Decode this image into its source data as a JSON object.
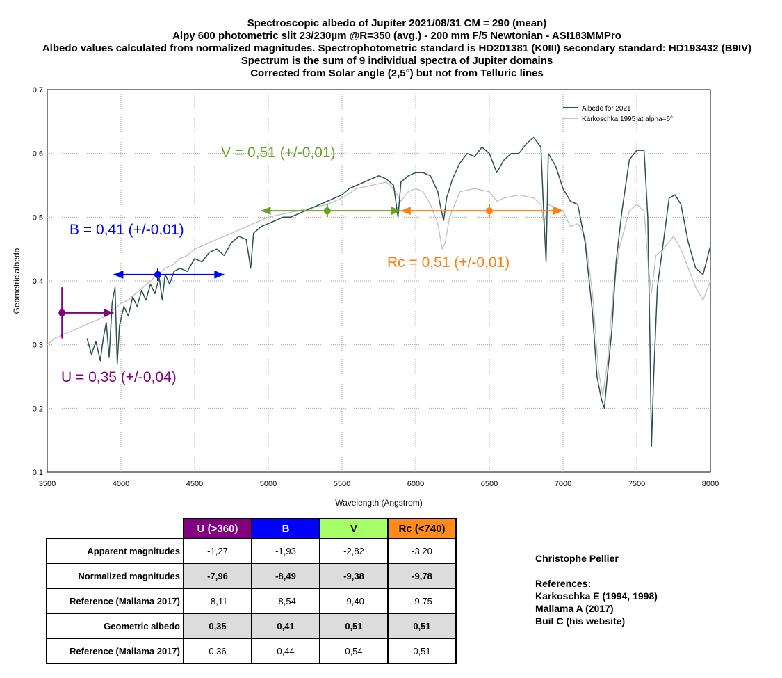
{
  "title_lines": [
    "Spectroscopic albedo of Jupiter 2021/08/31 CM = 290 (mean)",
    "Alpy 600 photometric slit 23/230µm @R=350 (avg.) - 200 mm F/5 Newtonian - ASI183MMPro",
    "Albedo values calculated from normalized magnitudes. Spectrophotometric standard is HD201381 (K0III) secondary standard: HD193432 (B9IV)",
    "Spectrum is the sum of 9 individual spectra of Jupiter domains",
    "Corrected from Solar angle (2,5°) but not from Telluric lines"
  ],
  "chart_data": {
    "type": "line",
    "xlabel": "Wavelength (Angstrom)",
    "ylabel": "Geometric albedo",
    "xlim": [
      3500,
      8000
    ],
    "ylim": [
      0.1,
      0.7
    ],
    "x_ticks": [
      3500,
      4000,
      4500,
      5000,
      5500,
      6000,
      6500,
      7000,
      7500,
      8000
    ],
    "y_ticks": [
      0.1,
      0.2,
      0.3,
      0.4,
      0.5,
      0.6,
      0.7
    ],
    "y_tick_labels": [
      "0.1",
      "0.2",
      "0.3",
      "0.4",
      "0.5",
      "0.6",
      "0.7"
    ],
    "grid": true,
    "legend_position": "top-right",
    "series": [
      {
        "name": "Albedo for 2021",
        "color": "#2f4f4f",
        "points": [
          [
            3770,
            0.31
          ],
          [
            3800,
            0.285
          ],
          [
            3830,
            0.305
          ],
          [
            3860,
            0.275
          ],
          [
            3880,
            0.31
          ],
          [
            3900,
            0.335
          ],
          [
            3920,
            0.28
          ],
          [
            3940,
            0.365
          ],
          [
            3960,
            0.39
          ],
          [
            3975,
            0.27
          ],
          [
            3990,
            0.33
          ],
          [
            4020,
            0.36
          ],
          [
            4050,
            0.345
          ],
          [
            4080,
            0.375
          ],
          [
            4110,
            0.36
          ],
          [
            4140,
            0.385
          ],
          [
            4170,
            0.37
          ],
          [
            4200,
            0.395
          ],
          [
            4230,
            0.38
          ],
          [
            4260,
            0.405
          ],
          [
            4280,
            0.37
          ],
          [
            4300,
            0.41
          ],
          [
            4330,
            0.395
          ],
          [
            4360,
            0.415
          ],
          [
            4400,
            0.42
          ],
          [
            4450,
            0.415
          ],
          [
            4500,
            0.435
          ],
          [
            4550,
            0.43
          ],
          [
            4600,
            0.445
          ],
          [
            4650,
            0.45
          ],
          [
            4700,
            0.44
          ],
          [
            4750,
            0.46
          ],
          [
            4800,
            0.47
          ],
          [
            4850,
            0.465
          ],
          [
            4880,
            0.42
          ],
          [
            4900,
            0.475
          ],
          [
            4950,
            0.485
          ],
          [
            5000,
            0.49
          ],
          [
            5050,
            0.495
          ],
          [
            5100,
            0.5
          ],
          [
            5150,
            0.5
          ],
          [
            5200,
            0.505
          ],
          [
            5250,
            0.51
          ],
          [
            5300,
            0.515
          ],
          [
            5350,
            0.52
          ],
          [
            5400,
            0.525
          ],
          [
            5450,
            0.53
          ],
          [
            5500,
            0.535
          ],
          [
            5550,
            0.545
          ],
          [
            5600,
            0.55
          ],
          [
            5650,
            0.555
          ],
          [
            5700,
            0.56
          ],
          [
            5750,
            0.565
          ],
          [
            5800,
            0.56
          ],
          [
            5850,
            0.55
          ],
          [
            5880,
            0.5
          ],
          [
            5900,
            0.555
          ],
          [
            5950,
            0.565
          ],
          [
            6000,
            0.57
          ],
          [
            6050,
            0.57
          ],
          [
            6100,
            0.565
          ],
          [
            6150,
            0.54
          ],
          [
            6170,
            0.515
          ],
          [
            6190,
            0.495
          ],
          [
            6210,
            0.53
          ],
          [
            6250,
            0.56
          ],
          [
            6300,
            0.585
          ],
          [
            6350,
            0.6
          ],
          [
            6400,
            0.595
          ],
          [
            6450,
            0.61
          ],
          [
            6500,
            0.6
          ],
          [
            6550,
            0.57
          ],
          [
            6600,
            0.59
          ],
          [
            6650,
            0.6
          ],
          [
            6700,
            0.6
          ],
          [
            6750,
            0.615
          ],
          [
            6800,
            0.625
          ],
          [
            6850,
            0.61
          ],
          [
            6870,
            0.5
          ],
          [
            6885,
            0.43
          ],
          [
            6900,
            0.6
          ],
          [
            6950,
            0.58
          ],
          [
            7000,
            0.545
          ],
          [
            7050,
            0.525
          ],
          [
            7100,
            0.52
          ],
          [
            7150,
            0.46
          ],
          [
            7200,
            0.35
          ],
          [
            7230,
            0.25
          ],
          [
            7260,
            0.215
          ],
          [
            7280,
            0.2
          ],
          [
            7300,
            0.25
          ],
          [
            7330,
            0.32
          ],
          [
            7360,
            0.43
          ],
          [
            7400,
            0.51
          ],
          [
            7450,
            0.59
          ],
          [
            7500,
            0.605
          ],
          [
            7550,
            0.605
          ],
          [
            7575,
            0.5
          ],
          [
            7590,
            0.3
          ],
          [
            7600,
            0.14
          ],
          [
            7615,
            0.25
          ],
          [
            7640,
            0.39
          ],
          [
            7680,
            0.46
          ],
          [
            7720,
            0.53
          ],
          [
            7760,
            0.535
          ],
          [
            7800,
            0.52
          ],
          [
            7850,
            0.46
          ],
          [
            7900,
            0.42
          ],
          [
            7950,
            0.41
          ],
          [
            8000,
            0.455
          ]
        ]
      },
      {
        "name": "Karkoschka 1995 at alpha=6°",
        "color": "#c0c0c0",
        "points": [
          [
            3500,
            0.3
          ],
          [
            3550,
            0.31
          ],
          [
            3600,
            0.315
          ],
          [
            3650,
            0.32
          ],
          [
            3700,
            0.325
          ],
          [
            3750,
            0.33
          ],
          [
            3800,
            0.335
          ],
          [
            3850,
            0.34
          ],
          [
            3900,
            0.345
          ],
          [
            3950,
            0.355
          ],
          [
            4000,
            0.365
          ],
          [
            4050,
            0.37
          ],
          [
            4100,
            0.38
          ],
          [
            4150,
            0.39
          ],
          [
            4200,
            0.4
          ],
          [
            4250,
            0.41
          ],
          [
            4300,
            0.42
          ],
          [
            4350,
            0.425
          ],
          [
            4400,
            0.435
          ],
          [
            4450,
            0.44
          ],
          [
            4500,
            0.45
          ],
          [
            4550,
            0.455
          ],
          [
            4600,
            0.46
          ],
          [
            4650,
            0.465
          ],
          [
            4700,
            0.47
          ],
          [
            4750,
            0.475
          ],
          [
            4800,
            0.48
          ],
          [
            4850,
            0.485
          ],
          [
            4900,
            0.49
          ],
          [
            4950,
            0.495
          ],
          [
            5000,
            0.5
          ],
          [
            5100,
            0.505
          ],
          [
            5200,
            0.51
          ],
          [
            5300,
            0.515
          ],
          [
            5400,
            0.52
          ],
          [
            5500,
            0.53
          ],
          [
            5600,
            0.545
          ],
          [
            5700,
            0.55
          ],
          [
            5800,
            0.555
          ],
          [
            5850,
            0.545
          ],
          [
            5900,
            0.525
          ],
          [
            5950,
            0.54
          ],
          [
            6000,
            0.545
          ],
          [
            6050,
            0.54
          ],
          [
            6100,
            0.52
          ],
          [
            6150,
            0.49
          ],
          [
            6180,
            0.45
          ],
          [
            6200,
            0.46
          ],
          [
            6230,
            0.5
          ],
          [
            6300,
            0.54
          ],
          [
            6400,
            0.545
          ],
          [
            6500,
            0.54
          ],
          [
            6550,
            0.525
          ],
          [
            6600,
            0.53
          ],
          [
            6700,
            0.535
          ],
          [
            6800,
            0.53
          ],
          [
            6850,
            0.52
          ],
          [
            6870,
            0.49
          ],
          [
            6900,
            0.52
          ],
          [
            6950,
            0.515
          ],
          [
            7000,
            0.51
          ],
          [
            7050,
            0.485
          ],
          [
            7100,
            0.49
          ],
          [
            7150,
            0.47
          ],
          [
            7200,
            0.38
          ],
          [
            7240,
            0.26
          ],
          [
            7270,
            0.22
          ],
          [
            7300,
            0.27
          ],
          [
            7340,
            0.38
          ],
          [
            7380,
            0.45
          ],
          [
            7450,
            0.51
          ],
          [
            7500,
            0.52
          ],
          [
            7550,
            0.51
          ],
          [
            7580,
            0.42
          ],
          [
            7600,
            0.38
          ],
          [
            7630,
            0.44
          ],
          [
            7680,
            0.45
          ],
          [
            7750,
            0.47
          ],
          [
            7800,
            0.45
          ],
          [
            7850,
            0.42
          ],
          [
            7900,
            0.39
          ],
          [
            7950,
            0.37
          ],
          [
            8000,
            0.4
          ]
        ]
      }
    ],
    "annotations": [
      {
        "label": "U = 0,35 (+/-0,04)",
        "color": "#800080",
        "center": [
          3600,
          0.35
        ],
        "range": [
          3600,
          3950
        ],
        "y_err": [
          0.31,
          0.39
        ]
      },
      {
        "label": "B = 0,41 (+/-0,01)",
        "color": "#0000ff",
        "center": [
          4250,
          0.41
        ],
        "range": [
          3950,
          4700
        ],
        "y_err": [
          0.4,
          0.42
        ]
      },
      {
        "label": "V = 0,51 (+/-0,01)",
        "color": "#6aa121",
        "center": [
          5400,
          0.51
        ],
        "range": [
          4950,
          5900
        ],
        "y_err": [
          0.5,
          0.52
        ]
      },
      {
        "label": "Rc = 0,51 (+/-0,01)",
        "color": "#ff7f0e",
        "center": [
          6500,
          0.51
        ],
        "range": [
          5900,
          7000
        ],
        "y_err": [
          0.5,
          0.52
        ]
      }
    ]
  },
  "table": {
    "headers": [
      "U (>360)",
      "B",
      "V",
      "Rc (<740)"
    ],
    "rows": [
      {
        "label": "Apparent magnitudes",
        "values": [
          "-1,27",
          "-1,93",
          "-2,82",
          "-3,20"
        ],
        "shaded": false
      },
      {
        "label": "Normalized magnitudes",
        "values": [
          "-7,96",
          "-8,49",
          "-9,38",
          "-9,78"
        ],
        "shaded": true
      },
      {
        "label": "Reference (Mallama 2017)",
        "values": [
          "-8,11",
          "-8,54",
          "-9,40",
          "-9,75"
        ],
        "shaded": false
      },
      {
        "label": "Geometric albedo",
        "values": [
          "0,35",
          "0,41",
          "0,51",
          "0,51"
        ],
        "shaded": true
      },
      {
        "label": "Reference (Mallama 2017)",
        "values": [
          "0,36",
          "0,44",
          "0,54",
          "0,51"
        ],
        "shaded": false
      }
    ]
  },
  "credits": {
    "author": "Christophe Pellier",
    "references_title": "References:",
    "references": [
      "Karkoschka E (1994, 1998)",
      "Mallama A (2017)",
      "Buil C (his website)"
    ]
  }
}
